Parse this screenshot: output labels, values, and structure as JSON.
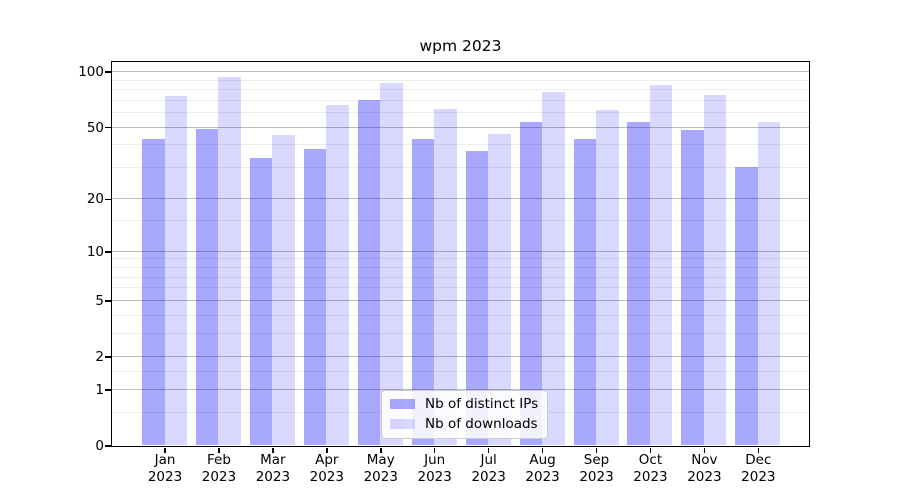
{
  "title": "wpm 2023",
  "chart_data": {
    "type": "bar",
    "title": "wpm 2023",
    "categories": [
      "Jan 2023",
      "Feb 2023",
      "Mar 2023",
      "Apr 2023",
      "May 2023",
      "Jun 2023",
      "Jul 2023",
      "Aug 2023",
      "Sep 2023",
      "Oct 2023",
      "Nov 2023",
      "Dec 2023"
    ],
    "series": [
      {
        "name": "Nb of distinct IPs",
        "color": "#0000FF57",
        "values": [
          43,
          49,
          34,
          38,
          70,
          43,
          37,
          53,
          43,
          53,
          48,
          30
        ]
      },
      {
        "name": "Nb of downloads",
        "color": "#0000FF26",
        "values": [
          74,
          93,
          45,
          66,
          87,
          63,
          46,
          78,
          62,
          85,
          75,
          53
        ]
      }
    ],
    "xlabel": "",
    "ylabel": "",
    "yscale": "log1p",
    "ylim": [
      0,
      113
    ],
    "yticks": [
      0,
      1,
      2,
      5,
      10,
      20,
      50,
      100
    ],
    "y_minor_ticks": [
      0.5,
      1.5,
      3,
      4,
      6,
      7,
      8,
      9,
      15,
      30,
      40,
      60,
      70,
      80,
      90
    ],
    "grid": true,
    "legend_position": "lower center"
  },
  "colors": {
    "axis": "#000000",
    "grid_major": "#bdbdbd",
    "grid_minor": "#ececec",
    "legend_border": "#cccccc",
    "background": "#ffffff"
  }
}
